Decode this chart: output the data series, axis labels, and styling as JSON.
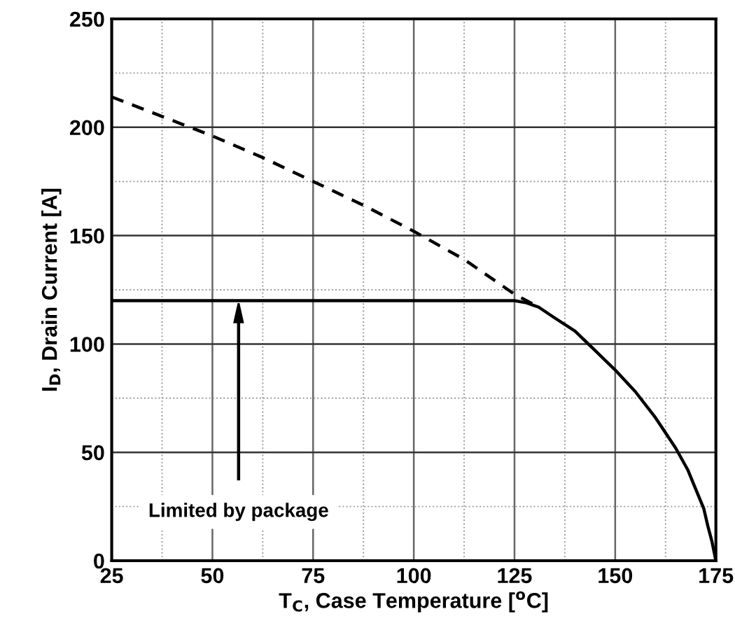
{
  "chart_data": {
    "type": "line",
    "xlabel": "T$_{C}$, Case Temperature [$^{o}$C]",
    "ylabel": "I$_{D}$, Drain Current [A]",
    "xlim": [
      25,
      175
    ],
    "ylim": [
      0,
      250
    ],
    "xticks": [
      25,
      {
        "value": 37.5,
        "label": null
      },
      50,
      {
        "value": 62.5,
        "label": null
      },
      75,
      {
        "value": 87.5,
        "label": null
      },
      100,
      {
        "value": 112.5,
        "label": null
      },
      125,
      {
        "value": 137.5,
        "label": null
      },
      150,
      {
        "value": 162.5,
        "label": null
      },
      175
    ],
    "yticks": [
      0,
      {
        "value": 25,
        "label": null
      },
      50,
      {
        "value": 75,
        "label": null
      },
      100,
      {
        "value": 125,
        "label": null
      },
      150,
      {
        "value": 175,
        "label": null
      },
      200,
      {
        "value": 225,
        "label": null
      },
      250
    ],
    "grid": true,
    "series": [
      {
        "color": "#000000",
        "line_style": "dashed",
        "x": [
          25,
          37.5,
          50,
          62.5,
          75,
          87.5,
          100,
          112.5,
          125,
          131
        ],
        "values": [
          214,
          205,
          196,
          186,
          175,
          164,
          152,
          139,
          123,
          117
        ]
      },
      {
        "color": "#000000",
        "line_style": "solid",
        "x": [
          25,
          50,
          75,
          100,
          125,
          128,
          131,
          135,
          140,
          145,
          150,
          155,
          160,
          165,
          168,
          170,
          172,
          173,
          174,
          175
        ],
        "values": [
          120,
          120,
          120,
          120,
          120,
          119,
          117,
          112,
          106,
          97,
          88,
          78,
          66,
          52,
          42,
          33,
          24,
          16,
          9,
          0
        ]
      }
    ],
    "annotations": [
      "Limited by package"
    ]
  }
}
